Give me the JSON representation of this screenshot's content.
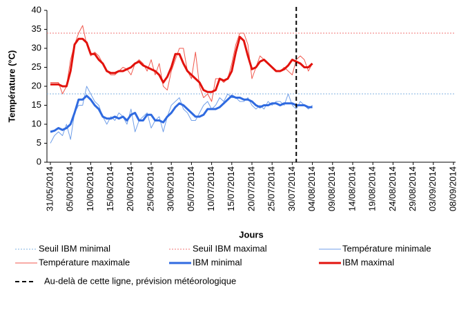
{
  "chart_data": {
    "type": "line",
    "y_label": "Température (°C)",
    "x_label": "Jours",
    "ylim": [
      0,
      40
    ],
    "yticks": [
      0,
      5,
      10,
      15,
      20,
      25,
      30,
      35,
      40
    ],
    "categories": [
      "31/05/2014",
      null,
      null,
      null,
      null,
      "05/06/2014",
      null,
      null,
      null,
      null,
      "10/06/2014",
      null,
      null,
      null,
      null,
      "15/06/2014",
      null,
      null,
      null,
      null,
      "20/06/2014",
      null,
      null,
      null,
      null,
      "25/06/2014",
      null,
      null,
      null,
      null,
      "30/06/2014",
      null,
      null,
      null,
      null,
      "05/07/2014",
      null,
      null,
      null,
      null,
      "10/07/2014",
      null,
      null,
      null,
      null,
      "15/07/2014",
      null,
      null,
      null,
      null,
      "20/07/2014",
      null,
      null,
      null,
      null,
      "25/07/2014",
      null,
      null,
      null,
      null,
      "30/07/2014",
      null,
      null,
      null,
      null,
      "04/08/2014",
      null,
      null,
      null,
      null,
      "09/08/2014",
      null,
      null,
      null,
      null,
      "14/08/2014",
      null,
      null,
      null,
      null,
      "19/08/2014",
      null,
      null,
      null,
      null,
      "24/08/2014",
      null,
      null,
      null,
      null,
      "29/08/2014",
      null,
      null,
      null,
      null,
      "03/09/2014",
      null,
      null,
      null,
      null,
      "08/09/2014"
    ],
    "thresholds": [
      {
        "name": "Seuil IBM minimal",
        "value": 18,
        "color": "#7fb0e0"
      },
      {
        "name": "Seuil IBM maximal",
        "value": 34,
        "color": "#f07070"
      }
    ],
    "series": [
      {
        "name": "Température minimale",
        "color": "#6f9ee8",
        "line_width": 1,
        "values": [
          5,
          7,
          8,
          7,
          10,
          6,
          13,
          15,
          15,
          20,
          18,
          16,
          15,
          12,
          10,
          12,
          11,
          13,
          12,
          10,
          14,
          8,
          11,
          12,
          13,
          9,
          11,
          12,
          8,
          12,
          15,
          16,
          17,
          14,
          13,
          11,
          11,
          13,
          15,
          16,
          14,
          15,
          17,
          16,
          18,
          17,
          17,
          16,
          16,
          17,
          15,
          14,
          15,
          14,
          16,
          15,
          16,
          16,
          15,
          18,
          15,
          14,
          16,
          15,
          14,
          15,
          null,
          null,
          null,
          null,
          null,
          null,
          null,
          null,
          null,
          null,
          null,
          null,
          null,
          null,
          null,
          null,
          null,
          null,
          null,
          null,
          null,
          null,
          null,
          null,
          null,
          null,
          null,
          null,
          null,
          null,
          null,
          null,
          null,
          null,
          null
        ]
      },
      {
        "name": "Température maximale",
        "color": "#f0574c",
        "line_width": 1,
        "values": [
          21,
          21,
          21,
          18,
          20,
          27,
          31,
          34,
          36,
          31,
          28,
          29,
          28,
          26,
          24,
          23,
          23,
          24,
          25,
          24.5,
          23,
          26,
          27,
          26,
          24,
          27,
          23,
          26,
          20,
          19,
          24,
          27,
          30,
          30,
          24,
          22,
          29,
          20,
          17,
          18,
          16,
          22,
          22,
          21,
          22,
          26,
          31,
          34,
          34,
          31,
          22,
          25,
          28,
          27,
          26,
          25,
          24,
          24,
          25,
          24,
          23,
          27,
          28,
          27,
          24,
          26,
          null,
          null,
          null,
          null,
          null,
          null,
          null,
          null,
          null,
          null,
          null,
          null,
          null,
          null,
          null,
          null,
          null,
          null,
          null,
          null,
          null,
          null,
          null,
          null,
          null,
          null,
          null,
          null,
          null,
          null,
          null,
          null,
          null,
          null,
          null
        ]
      },
      {
        "name": "IBM minimal",
        "color": "#2f6ae0",
        "line_width": 3,
        "values": [
          8,
          8.3,
          9,
          8.5,
          9,
          10,
          13,
          16.5,
          16.5,
          17.5,
          16.5,
          15,
          14,
          12,
          11.5,
          11.5,
          12,
          11.5,
          12,
          11,
          12.5,
          13,
          11,
          11,
          12.5,
          12.5,
          11,
          11,
          10.5,
          12,
          13,
          14.5,
          15.5,
          15,
          14,
          13,
          12,
          12,
          12.5,
          14,
          14,
          14,
          14.5,
          15.5,
          16.5,
          17.5,
          17,
          17,
          16.5,
          16.5,
          16,
          15,
          14.5,
          15,
          15,
          15.5,
          15.5,
          15,
          15.5,
          15.5,
          15.5,
          15,
          15,
          15,
          14.5,
          14.5,
          null,
          null,
          null,
          null,
          null,
          null,
          null,
          null,
          null,
          null,
          null,
          null,
          null,
          null,
          null,
          null,
          null,
          null,
          null,
          null,
          null,
          null,
          null,
          null,
          null,
          null,
          null,
          null,
          null,
          null,
          null,
          null,
          null,
          null,
          null
        ]
      },
      {
        "name": "IBM maximal",
        "color": "#e2120c",
        "line_width": 3,
        "values": [
          20.5,
          20.5,
          20.5,
          20,
          20,
          24,
          31,
          32.5,
          32.5,
          31.5,
          28.5,
          28.5,
          27,
          26,
          24,
          23.5,
          23.5,
          24,
          24,
          24.5,
          25,
          26,
          26.5,
          25.5,
          25,
          24.5,
          24,
          23,
          21,
          22.5,
          25,
          28.5,
          28.5,
          26,
          24,
          23,
          22,
          21,
          19,
          18.5,
          18.5,
          19,
          22,
          21.5,
          22,
          24,
          29,
          33,
          32,
          28,
          24.5,
          25,
          26.5,
          27,
          26,
          25,
          24,
          24,
          24.5,
          25.5,
          27,
          26.5,
          26,
          25,
          25,
          26,
          null,
          null,
          null,
          null,
          null,
          null,
          null,
          null,
          null,
          null,
          null,
          null,
          null,
          null,
          null,
          null,
          null,
          null,
          null,
          null,
          null,
          null,
          null,
          null,
          null,
          null,
          null,
          null,
          null,
          null,
          null,
          null,
          null,
          null,
          null
        ]
      }
    ],
    "forecast_line": {
      "category_index": 61,
      "label": "Au-delà de cette ligne, prévision météorologique"
    }
  }
}
